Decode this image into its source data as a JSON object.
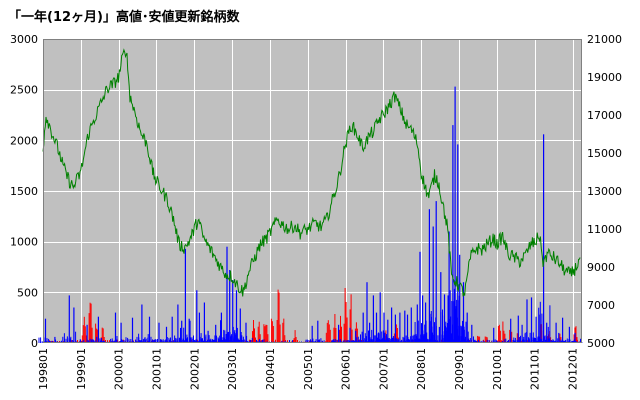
{
  "chart_data": {
    "type": "line",
    "title": "「一年(12ヶ月)」高値･安値更新銘柄数",
    "plot_background": "#c0c0c0",
    "grid": true,
    "grid_color": "#ffffff",
    "left_axis": {
      "ylim": [
        0,
        3000
      ],
      "ticks": [
        "3000",
        "2500",
        "2000",
        "1500",
        "1000",
        "500",
        "0"
      ],
      "tick_values": [
        3000,
        2500,
        2000,
        1500,
        1000,
        500,
        0
      ],
      "color": "#000000"
    },
    "right_axis": {
      "ylim": [
        5000,
        21000
      ],
      "ticks": [
        "21000",
        "19000",
        "17000",
        "15000",
        "13000",
        "11000",
        "9000",
        "7000",
        "5000"
      ],
      "tick_values": [
        21000,
        19000,
        17000,
        15000,
        13000,
        11000,
        9000,
        7000,
        5000
      ],
      "color": "#008000"
    },
    "x_axis": {
      "range": [
        1998.0,
        2012.25
      ],
      "tick_labels": [
        "199801",
        "199901",
        "200001",
        "200101",
        "200201",
        "200301",
        "200401",
        "200501",
        "200601",
        "200701",
        "200801",
        "200901",
        "201001",
        "201101",
        "201201"
      ],
      "tick_positions": [
        1998,
        1999,
        2000,
        2001,
        2002,
        2003,
        2004,
        2005,
        2006,
        2007,
        2008,
        2009,
        2010,
        2011,
        2012
      ]
    },
    "series": [
      {
        "kind": "index_line",
        "axis": "right",
        "color": "#008000",
        "x": [
          1998.0,
          1998.08,
          1998.25,
          1998.4,
          1998.55,
          1998.7,
          1998.8,
          1999.0,
          1999.2,
          1999.4,
          1999.55,
          1999.7,
          1999.85,
          2000.0,
          2000.1,
          2000.2,
          2000.3,
          2000.45,
          2000.6,
          2000.75,
          2000.9,
          2001.0,
          2001.15,
          2001.3,
          2001.45,
          2001.6,
          2001.75,
          2001.9,
          2002.0,
          2002.1,
          2002.25,
          2002.4,
          2002.55,
          2002.7,
          2002.85,
          2003.0,
          2003.15,
          2003.3,
          2003.45,
          2003.6,
          2003.75,
          2003.9,
          2004.0,
          2004.2,
          2004.35,
          2004.5,
          2004.65,
          2004.8,
          2005.0,
          2005.2,
          2005.35,
          2005.5,
          2005.65,
          2005.8,
          2006.0,
          2006.15,
          2006.3,
          2006.45,
          2006.6,
          2006.75,
          2006.9,
          2007.0,
          2007.15,
          2007.3,
          2007.45,
          2007.6,
          2007.75,
          2007.9,
          2008.0,
          2008.1,
          2008.2,
          2008.35,
          2008.45,
          2008.55,
          2008.7,
          2008.8,
          2008.9,
          2009.0,
          2009.15,
          2009.3,
          2009.45,
          2009.6,
          2009.75,
          2009.9,
          2010.0,
          2010.15,
          2010.3,
          2010.45,
          2010.6,
          2010.75,
          2010.9,
          2011.0,
          2011.15,
          2011.2,
          2011.35,
          2011.5,
          2011.65,
          2011.8,
          2011.95,
          2012.1,
          2012.2
        ],
        "values": [
          15300,
          17000,
          16000,
          15200,
          14200,
          13500,
          13200,
          14000,
          16000,
          17000,
          17700,
          18400,
          18600,
          19000,
          20000,
          20500,
          18000,
          17000,
          16000,
          15500,
          14000,
          13500,
          13000,
          12500,
          11500,
          10200,
          10000,
          10500,
          11000,
          11500,
          10500,
          10000,
          9500,
          9000,
          8600,
          8500,
          8000,
          7700,
          8800,
          9500,
          10200,
          10500,
          10800,
          11500,
          11200,
          11000,
          11200,
          10800,
          11000,
          11300,
          11100,
          11500,
          12500,
          13500,
          15500,
          16500,
          16000,
          15300,
          15800,
          16200,
          16800,
          17000,
          17500,
          18000,
          17300,
          16500,
          16200,
          15500,
          14000,
          13200,
          12700,
          13800,
          13500,
          12500,
          11000,
          8500,
          8300,
          8000,
          7600,
          9500,
          10000,
          9900,
          10200,
          10500,
          10200,
          10600,
          9700,
          9500,
          9300,
          9600,
          10200,
          10300,
          10700,
          9200,
          9700,
          9500,
          9200,
          8800,
          8600,
          9000,
          9500
        ]
      },
      {
        "kind": "new_low_bars",
        "name": "",
        "axis": "left",
        "color": "#0000ff",
        "spikes": [
          [
            1998.05,
            240
          ],
          [
            1998.3,
            60
          ],
          [
            1998.68,
            470
          ],
          [
            1998.8,
            350
          ],
          [
            1999.15,
            180
          ],
          [
            1999.45,
            260
          ],
          [
            1999.9,
            300
          ],
          [
            2000.05,
            200
          ],
          [
            2000.35,
            250
          ],
          [
            2000.6,
            380
          ],
          [
            2000.8,
            260
          ],
          [
            2001.05,
            200
          ],
          [
            2001.25,
            160
          ],
          [
            2001.4,
            260
          ],
          [
            2001.55,
            380
          ],
          [
            2001.65,
            220
          ],
          [
            2001.75,
            930
          ],
          [
            2001.85,
            240
          ],
          [
            2002.05,
            520
          ],
          [
            2002.12,
            300
          ],
          [
            2002.25,
            400
          ],
          [
            2002.35,
            120
          ],
          [
            2002.55,
            180
          ],
          [
            2002.7,
            300
          ],
          [
            2002.85,
            950
          ],
          [
            2002.92,
            720
          ],
          [
            2003.0,
            620
          ],
          [
            2003.1,
            520
          ],
          [
            2003.2,
            340
          ],
          [
            2003.35,
            200
          ],
          [
            2005.1,
            170
          ],
          [
            2005.25,
            220
          ],
          [
            2005.8,
            180
          ],
          [
            2006.1,
            150
          ],
          [
            2006.25,
            120
          ],
          [
            2006.45,
            300
          ],
          [
            2006.55,
            600
          ],
          [
            2006.62,
            200
          ],
          [
            2006.72,
            470
          ],
          [
            2006.8,
            300
          ],
          [
            2006.9,
            500
          ],
          [
            2007.0,
            300
          ],
          [
            2007.1,
            230
          ],
          [
            2007.2,
            350
          ],
          [
            2007.3,
            280
          ],
          [
            2007.42,
            300
          ],
          [
            2007.55,
            320
          ],
          [
            2007.62,
            280
          ],
          [
            2007.72,
            350
          ],
          [
            2007.88,
            380
          ],
          [
            2007.95,
            900
          ],
          [
            2008.02,
            470
          ],
          [
            2008.1,
            400
          ],
          [
            2008.2,
            1320
          ],
          [
            2008.3,
            1150
          ],
          [
            2008.38,
            1400
          ],
          [
            2008.5,
            700
          ],
          [
            2008.6,
            480
          ],
          [
            2008.72,
            1100
          ],
          [
            2008.82,
            2150
          ],
          [
            2008.88,
            2530
          ],
          [
            2008.95,
            1960
          ],
          [
            2009.0,
            870
          ],
          [
            2009.1,
            600
          ],
          [
            2009.2,
            300
          ],
          [
            2009.32,
            180
          ],
          [
            2009.9,
            150
          ],
          [
            2010.35,
            240
          ],
          [
            2010.55,
            270
          ],
          [
            2010.65,
            180
          ],
          [
            2010.78,
            430
          ],
          [
            2010.9,
            450
          ],
          [
            2011.02,
            260
          ],
          [
            2011.12,
            280
          ],
          [
            2011.22,
            2060
          ],
          [
            2011.3,
            200
          ],
          [
            2011.55,
            200
          ],
          [
            2011.62,
            100
          ],
          [
            2011.72,
            250
          ],
          [
            2011.9,
            160
          ],
          [
            2012.05,
            100
          ]
        ]
      },
      {
        "kind": "new_high_bars",
        "name": "",
        "axis": "left",
        "color": "#ff0000",
        "clusters": [
          [
            1999.0,
            1999.15,
            260
          ],
          [
            1999.18,
            1999.3,
            500
          ],
          [
            1999.35,
            1999.45,
            300
          ],
          [
            1999.5,
            1999.62,
            180
          ],
          [
            2003.5,
            2003.62,
            280
          ],
          [
            2003.65,
            2003.75,
            230
          ],
          [
            2003.8,
            2003.95,
            400
          ],
          [
            2004.0,
            2004.1,
            330
          ],
          [
            2004.15,
            2004.28,
            600
          ],
          [
            2004.3,
            2004.4,
            300
          ],
          [
            2004.6,
            2004.7,
            160
          ],
          [
            2005.45,
            2005.6,
            370
          ],
          [
            2005.65,
            2005.75,
            560
          ],
          [
            2005.8,
            2005.9,
            500
          ],
          [
            2005.92,
            2006.05,
            650
          ],
          [
            2006.08,
            2006.18,
            600
          ],
          [
            2006.22,
            2006.32,
            300
          ],
          [
            2007.0,
            2007.12,
            130
          ],
          [
            2007.25,
            2007.4,
            240
          ],
          [
            2009.45,
            2009.55,
            120
          ],
          [
            2009.65,
            2009.75,
            130
          ],
          [
            2010.0,
            2010.1,
            250
          ],
          [
            2010.12,
            2010.22,
            300
          ],
          [
            2010.3,
            2010.4,
            200
          ],
          [
            2010.5,
            2010.6,
            150
          ],
          [
            2011.1,
            2011.2,
            230
          ],
          [
            2011.3,
            2011.45,
            130
          ],
          [
            2011.6,
            2011.7,
            120
          ],
          [
            2012.0,
            2012.12,
            200
          ]
        ]
      }
    ]
  }
}
